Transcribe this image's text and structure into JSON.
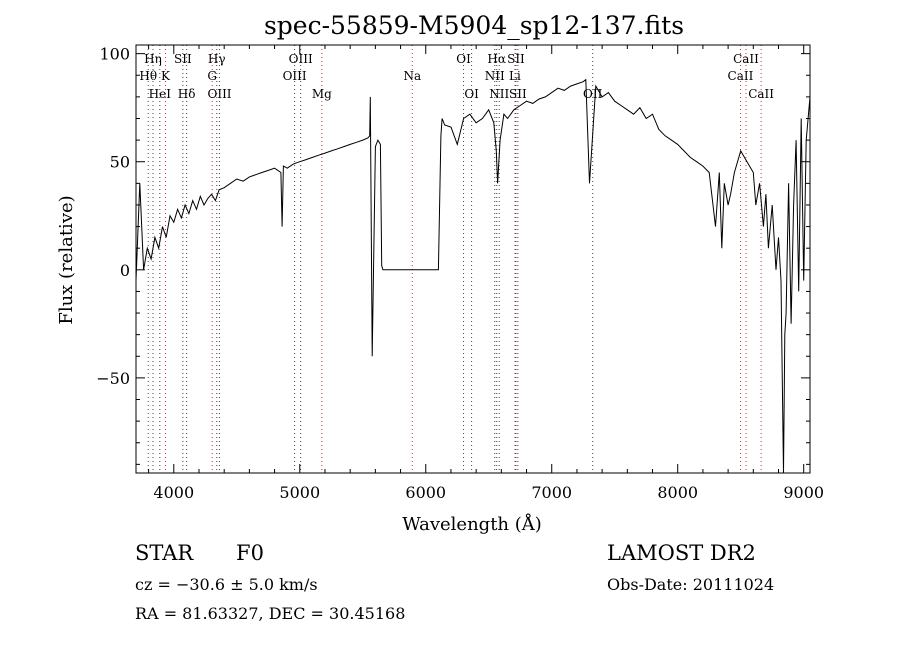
{
  "chart_data": {
    "type": "line",
    "title": "spec-55859-M5904_sp12-137.fits",
    "xlabel": "Wavelength (Å)",
    "ylabel": "Flux (relative)",
    "xlim": [
      3700,
      9050
    ],
    "ylim": [
      -94,
      104
    ],
    "xticks": [
      4000,
      5000,
      6000,
      7000,
      8000,
      9000
    ],
    "yticks": [
      0,
      50,
      100
    ],
    "yticks_neg": [
      -50
    ],
    "grid": false,
    "line_color": "#000000",
    "marker_color_red": "#c0392b",
    "marker_color_dark": "#444444",
    "series": [
      {
        "x": [
          3700,
          3730,
          3760,
          3790,
          3820,
          3850,
          3880,
          3910,
          3940,
          3970,
          4000,
          4030,
          4060,
          4090,
          4120,
          4150,
          4180,
          4210,
          4240,
          4270,
          4300,
          4330,
          4360,
          4400,
          4450,
          4500,
          4550,
          4600,
          4650,
          4700,
          4750,
          4800,
          4850,
          4860,
          4870,
          4900,
          4950,
          5000,
          5050,
          5100,
          5150,
          5200,
          5250,
          5300,
          5350,
          5400,
          5450,
          5500,
          5540,
          5555,
          5560,
          5575,
          5600,
          5620,
          5640,
          5650,
          5660,
          5680,
          5700,
          5800,
          5900,
          6000,
          6100,
          6120,
          6130,
          6150,
          6200,
          6250,
          6300,
          6350,
          6400,
          6450,
          6500,
          6540,
          6560,
          6570,
          6590,
          6620,
          6650,
          6700,
          6750,
          6800,
          6850,
          6900,
          6950,
          7000,
          7050,
          7100,
          7150,
          7200,
          7250,
          7270,
          7300,
          7350,
          7400,
          7450,
          7500,
          7550,
          7600,
          7650,
          7700,
          7750,
          7800,
          7850,
          7900,
          7950,
          8000,
          8050,
          8100,
          8150,
          8200,
          8250,
          8300,
          8330,
          8350,
          8370,
          8400,
          8420,
          8450,
          8500,
          8550,
          8600,
          8620,
          8650,
          8680,
          8700,
          8720,
          8750,
          8780,
          8800,
          8820,
          8840,
          8850,
          8860,
          8880,
          8900,
          8920,
          8940,
          8960,
          8980,
          9000,
          9020,
          9050
        ],
        "y": [
          -5,
          40,
          0,
          10,
          5,
          15,
          10,
          20,
          15,
          25,
          22,
          28,
          24,
          30,
          26,
          32,
          28,
          34,
          30,
          33,
          35,
          32,
          37,
          38,
          40,
          42,
          41,
          43,
          44,
          45,
          46,
          47,
          45,
          20,
          48,
          47,
          49,
          50,
          51,
          52,
          53,
          54,
          55,
          56,
          57,
          58,
          59,
          60,
          61,
          62,
          80,
          -40,
          57,
          60,
          58,
          2,
          0,
          0,
          0,
          0,
          0,
          0,
          0,
          62,
          70,
          67,
          66,
          58,
          70,
          72,
          68,
          70,
          74,
          68,
          55,
          40,
          60,
          72,
          70,
          74,
          76,
          78,
          77,
          79,
          80,
          82,
          84,
          83,
          85,
          86,
          87,
          88,
          40,
          85,
          80,
          82,
          78,
          76,
          74,
          72,
          75,
          70,
          72,
          65,
          62,
          60,
          58,
          55,
          52,
          50,
          48,
          45,
          20,
          45,
          10,
          40,
          30,
          35,
          45,
          55,
          50,
          45,
          30,
          40,
          20,
          35,
          10,
          30,
          0,
          15,
          -5,
          -94,
          -30,
          -20,
          40,
          -25,
          30,
          60,
          -10,
          70,
          -5,
          60,
          80
        ]
      }
    ],
    "lines": [
      {
        "label": "Hη",
        "x": 3835,
        "row": 1,
        "color": "dark"
      },
      {
        "label": "Hθ",
        "x": 3797,
        "row": 2,
        "color": "dark"
      },
      {
        "label": "HeI",
        "x": 3889,
        "row": 3,
        "color": "dark"
      },
      {
        "label": "K",
        "x": 3934,
        "row": 2,
        "color": "red"
      },
      {
        "label": "SII",
        "x": 4072,
        "row": 1,
        "color": "dark"
      },
      {
        "label": "Hδ",
        "x": 4102,
        "row": 3,
        "color": "dark"
      },
      {
        "label": "Hγ",
        "x": 4341,
        "row": 1,
        "color": "dark"
      },
      {
        "label": "G",
        "x": 4305,
        "row": 2,
        "color": "red"
      },
      {
        "label": "OIII",
        "x": 4363,
        "row": 3,
        "color": "dark"
      },
      {
        "label": "OIII",
        "x": 5007,
        "row": 1,
        "color": "dark"
      },
      {
        "label": "OIII",
        "x": 4959,
        "row": 2,
        "color": "dark"
      },
      {
        "label": "Mg",
        "x": 5175,
        "row": 3,
        "color": "red"
      },
      {
        "label": "Na",
        "x": 5893,
        "row": 2,
        "color": "red"
      },
      {
        "label": "OI",
        "x": 6300,
        "row": 1,
        "color": "dark"
      },
      {
        "label": "OI",
        "x": 6364,
        "row": 3,
        "color": "dark"
      },
      {
        "label": "Hα",
        "x": 6563,
        "row": 1,
        "color": "dark"
      },
      {
        "label": "SII",
        "x": 6716,
        "row": 1,
        "color": "dark"
      },
      {
        "label": "NII",
        "x": 6548,
        "row": 2,
        "color": "dark"
      },
      {
        "label": "Li",
        "x": 6708,
        "row": 2,
        "color": "red"
      },
      {
        "label": "NII",
        "x": 6583,
        "row": 3,
        "color": "dark"
      },
      {
        "label": "SII",
        "x": 6731,
        "row": 3,
        "color": "dark"
      },
      {
        "label": "OII",
        "x": 7325,
        "row": 3,
        "color": "dark"
      },
      {
        "label": "CaII",
        "x": 8542,
        "row": 1,
        "color": "red"
      },
      {
        "label": "CaII",
        "x": 8498,
        "row": 2,
        "color": "red"
      },
      {
        "label": "CaII",
        "x": 8662,
        "row": 3,
        "color": "red"
      }
    ]
  },
  "info": {
    "class_label": "STAR",
    "subclass": "F0",
    "survey": "LAMOST DR2",
    "cz_text": "cz = −30.6 ± 5.0 km/s",
    "obs_date": "Obs-Date: 20111024",
    "coords_text": "RA =  81.63327, DEC =  30.45168"
  }
}
